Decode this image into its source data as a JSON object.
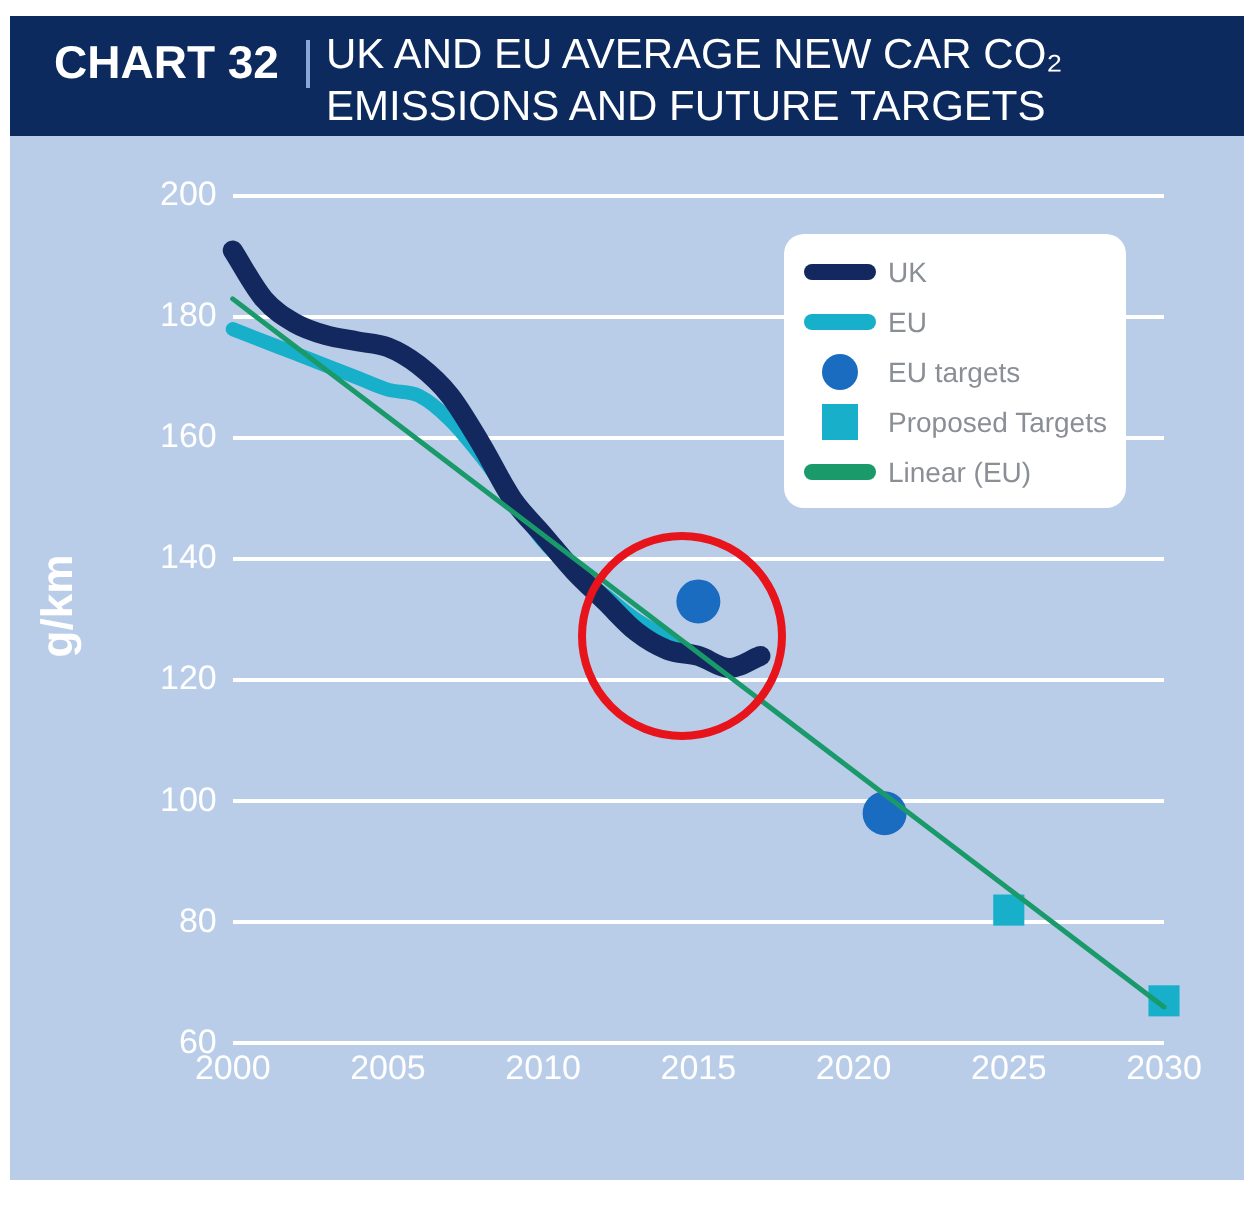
{
  "chart_data": {
    "type": "line",
    "title": "CHART 32",
    "subtitle": "UK AND EU AVERAGE NEW CAR CO₂ EMISSIONS AND FUTURE TARGETS",
    "ylabel": "g/km",
    "xlim": [
      2000,
      2030
    ],
    "xticks": [
      2000,
      2005,
      2010,
      2015,
      2020,
      2025,
      2030
    ],
    "ylim": [
      60,
      200
    ],
    "yticks": [
      60,
      80,
      100,
      120,
      140,
      160,
      180,
      200
    ],
    "grid": "y",
    "legend": "top right",
    "series": [
      {
        "name": "UK",
        "type": "line",
        "color": "#13285e",
        "x": [
          2000,
          2001,
          2002,
          2003,
          2004,
          2005,
          2006,
          2007,
          2008,
          2009,
          2010,
          2011,
          2012,
          2013,
          2014,
          2015,
          2016,
          2017
        ],
        "values": [
          191,
          183,
          179,
          177,
          176,
          175,
          172,
          167,
          159,
          150,
          144,
          138,
          133,
          128,
          125,
          124,
          122,
          124
        ]
      },
      {
        "name": "EU",
        "type": "line",
        "color": "#17afc9",
        "x": [
          2000,
          2002,
          2004,
          2005,
          2006,
          2007,
          2008,
          2009,
          2010,
          2011,
          2012,
          2013,
          2014,
          2015,
          2016
        ],
        "values": [
          178,
          174,
          170,
          168,
          167,
          163,
          157,
          150,
          143,
          138,
          134,
          130,
          127,
          124,
          122
        ]
      },
      {
        "name": "EU targets",
        "type": "scatter",
        "marker": "circle",
        "color": "#1a6cc0",
        "x": [
          2015,
          2021
        ],
        "values": [
          133,
          98
        ]
      },
      {
        "name": "Proposed Targets",
        "type": "scatter",
        "marker": "square",
        "color": "#17afc9",
        "x": [
          2025,
          2030
        ],
        "values": [
          82,
          67
        ]
      },
      {
        "name": "Linear (EU)",
        "type": "line",
        "color": "#1a9a6a",
        "x": [
          2000,
          2030
        ],
        "values": [
          183,
          66
        ]
      }
    ]
  }
}
